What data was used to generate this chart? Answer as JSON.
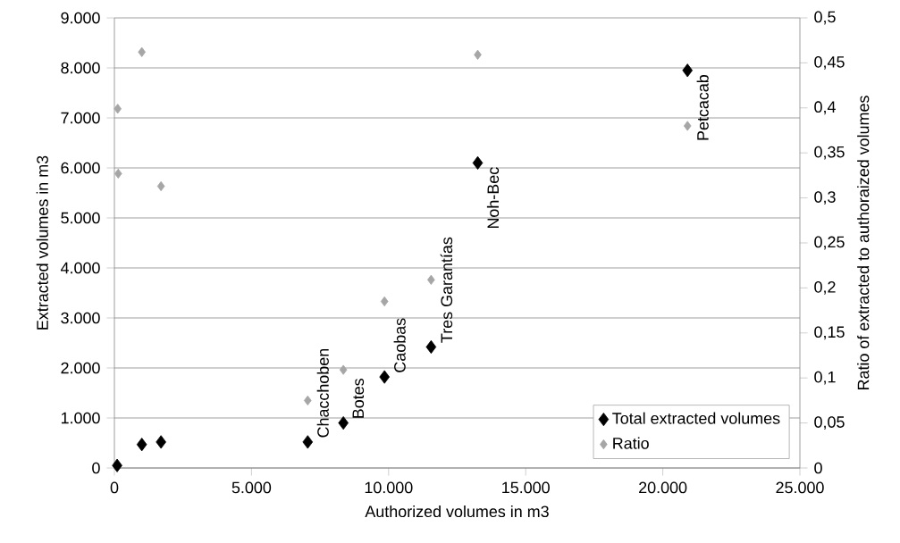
{
  "chart_data": {
    "type": "scatter",
    "xlabel": "Authorized volumes in m3",
    "ylabel": "Extracted volumes in m3",
    "y2label": "Ratio of extracted to authoraized volumes",
    "xlim": [
      0,
      25000
    ],
    "xticks": [
      0,
      {
        "value": 5000,
        "label": "5.000"
      },
      {
        "value": 10000,
        "label": "10.000"
      },
      {
        "value": 15000,
        "label": "15.000"
      },
      {
        "value": 20000,
        "label": "20.000"
      },
      {
        "value": 25000,
        "label": "25.000"
      }
    ],
    "ylim": [
      0,
      9000
    ],
    "yticks": [
      0,
      {
        "value": 1000,
        "label": "1.000"
      },
      {
        "value": 2000,
        "label": "2.000"
      },
      {
        "value": 3000,
        "label": "3.000"
      },
      {
        "value": 4000,
        "label": "4.000"
      },
      {
        "value": 5000,
        "label": "5.000"
      },
      {
        "value": 6000,
        "label": "6.000"
      },
      {
        "value": 7000,
        "label": "7.000"
      },
      {
        "value": 8000,
        "label": "8.000"
      },
      {
        "value": 9000,
        "label": "9.000"
      }
    ],
    "y2lim": [
      0,
      0.5
    ],
    "y2ticks": [
      0,
      {
        "value": 0.05,
        "label": "0,05"
      },
      {
        "value": 0.1,
        "label": "0,1"
      },
      {
        "value": 0.15,
        "label": "0,15"
      },
      {
        "value": 0.2,
        "label": "0,2"
      },
      {
        "value": 0.25,
        "label": "0,25"
      },
      {
        "value": 0.3,
        "label": "0,3"
      },
      {
        "value": 0.35,
        "label": "0,35"
      },
      {
        "value": 0.4,
        "label": "0,4"
      },
      {
        "value": 0.45,
        "label": "0,45"
      },
      {
        "value": 0.5,
        "label": "0,5"
      }
    ],
    "series": [
      {
        "name": "Total extracted volumes",
        "color": "#000000",
        "x": [
          100,
          1000,
          1700,
          7050,
          8350,
          9850,
          11550,
          13250,
          20900
        ],
        "values": [
          50,
          470,
          520,
          520,
          900,
          1820,
          2420,
          6100,
          7950
        ]
      },
      {
        "name": "Ratio",
        "color": "#a6a6a6",
        "axis": "y2",
        "x": [
          120,
          140,
          1000,
          1700,
          7050,
          8350,
          9850,
          11550,
          13250,
          20900
        ],
        "values": [
          0.399,
          0.327,
          0.462,
          0.313,
          0.075,
          0.109,
          0.185,
          0.209,
          0.459,
          0.38
        ]
      }
    ],
    "annotations": [
      {
        "text": "Chacchoben",
        "x": 7050,
        "y": 520
      },
      {
        "text": "Botes",
        "x": 8350,
        "y": 900
      },
      {
        "text": "Caobas",
        "x": 9850,
        "y": 1820
      },
      {
        "text": "Tres Garantías",
        "x": 11550,
        "y": 2420
      },
      {
        "text": "Noh-Bec",
        "x": 13250,
        "y": 6100
      },
      {
        "text": "Petcacab",
        "x": 20900,
        "y": 7950
      }
    ],
    "marker": "diamond",
    "grid": "y",
    "legend": "bottom right"
  }
}
